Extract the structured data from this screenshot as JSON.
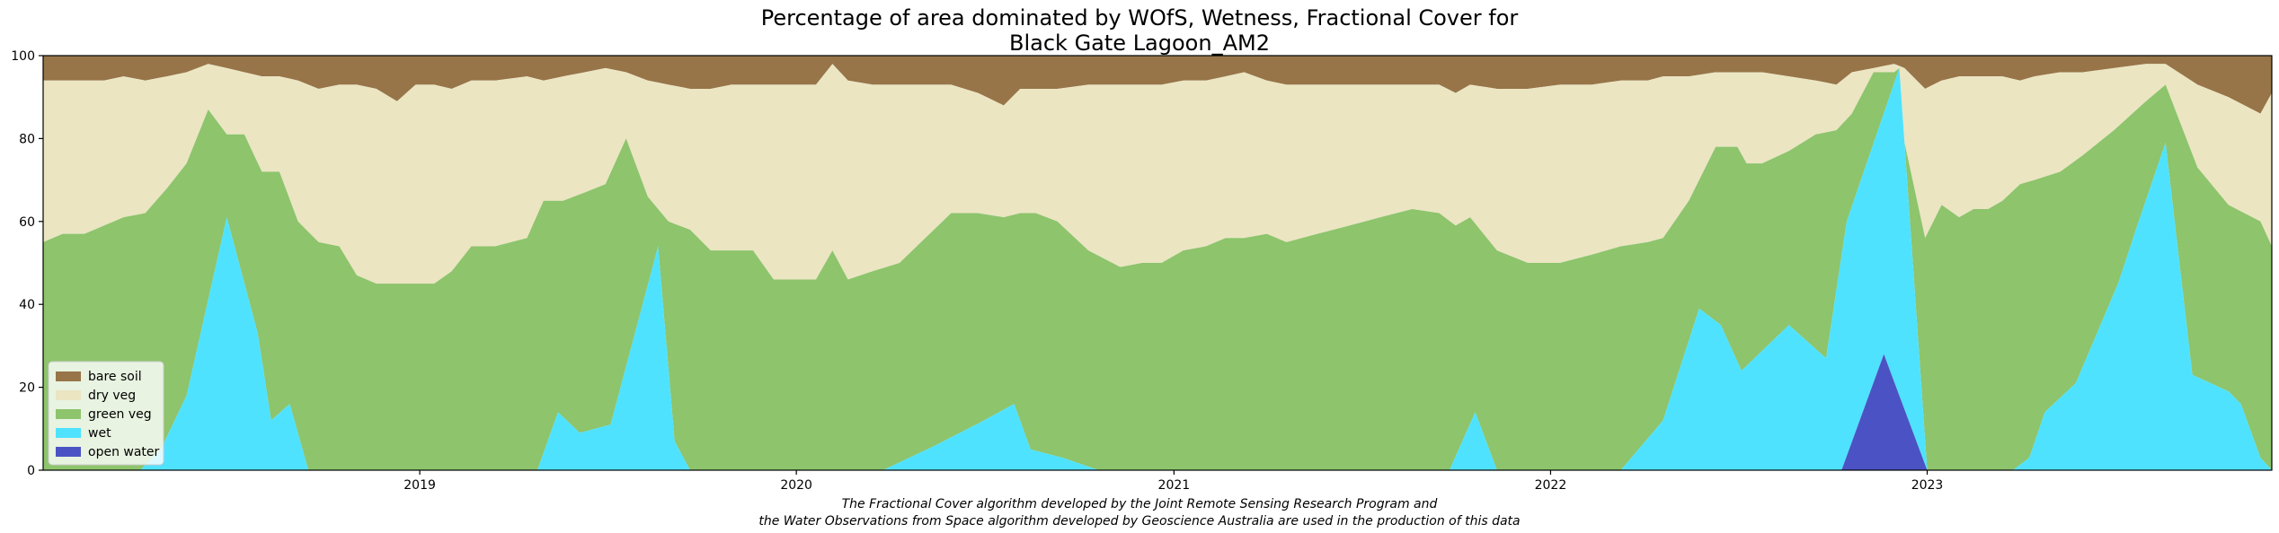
{
  "chart_data": {
    "type": "area",
    "title_lines": [
      "Percentage of area dominated by WOfS, Wetness, Fractional Cover for",
      "Black Gate Lagoon_AM2"
    ],
    "xlabel": "",
    "ylabel": "",
    "x_range": [
      "2018-01-01",
      "2023-12-01"
    ],
    "ylim": [
      0,
      100
    ],
    "x_ticks": [
      "2019",
      "2020",
      "2021",
      "2022",
      "2023"
    ],
    "y_ticks": [
      0,
      20,
      40,
      60,
      80,
      100
    ],
    "grid": false,
    "legend_position": "lower-left",
    "stacking_order": [
      "open water",
      "wet",
      "green veg",
      "dry veg",
      "bare soil"
    ],
    "series": [
      {
        "name": "bare soil",
        "color": "#977549"
      },
      {
        "name": "dry veg",
        "color": "#ebe5c2"
      },
      {
        "name": "green veg",
        "color": "#8dc46c"
      },
      {
        "name": "wet",
        "color": "#4fe2ff"
      },
      {
        "name": "open water",
        "color": "#4b53c4"
      }
    ],
    "dates": [
      "2018-01-01",
      "2018-01-20",
      "2018-02-10",
      "2018-03-01",
      "2018-03-20",
      "2018-04-10",
      "2018-05-01",
      "2018-05-20",
      "2018-06-10",
      "2018-06-28",
      "2018-07-15",
      "2018-08-01",
      "2018-08-18",
      "2018-09-05",
      "2018-09-25",
      "2018-10-15",
      "2018-11-01",
      "2018-11-20",
      "2018-12-10",
      "2018-12-28",
      "2019-01-15",
      "2019-02-01",
      "2019-02-20",
      "2019-03-15",
      "2019-04-15",
      "2019-05-01",
      "2019-05-20",
      "2019-06-10",
      "2019-06-30",
      "2019-07-20",
      "2019-08-10",
      "2019-08-30",
      "2019-09-20",
      "2019-10-10",
      "2019-10-30",
      "2019-11-20",
      "2019-12-10",
      "2020-01-01",
      "2020-01-20",
      "2020-02-05",
      "2020-02-20",
      "2020-03-15",
      "2020-04-10",
      "2020-05-05",
      "2020-05-30",
      "2020-06-25",
      "2020-07-20",
      "2020-08-05",
      "2020-08-20",
      "2020-09-10",
      "2020-10-10",
      "2020-11-10",
      "2020-12-01",
      "2020-12-20",
      "2021-01-10",
      "2021-02-01",
      "2021-02-20",
      "2021-03-10",
      "2021-04-01",
      "2021-04-20",
      "2021-05-20",
      "2021-06-20",
      "2021-07-20",
      "2021-08-20",
      "2021-09-15",
      "2021-10-01",
      "2021-10-15",
      "2021-11-10",
      "2021-12-10",
      "2022-01-10",
      "2022-02-10",
      "2022-03-10",
      "2022-04-05",
      "2022-04-20",
      "2022-05-15",
      "2022-06-10",
      "2022-07-01",
      "2022-07-10",
      "2022-07-25",
      "2022-08-20",
      "2022-09-15",
      "2022-10-05",
      "2022-10-20",
      "2022-11-10",
      "2022-11-30",
      "2022-12-10",
      "2022-12-30",
      "2023-01-15",
      "2023-02-01",
      "2023-02-15",
      "2023-03-01",
      "2023-03-15",
      "2023-04-01",
      "2023-04-15",
      "2023-05-10",
      "2023-06-01",
      "2023-07-01",
      "2023-08-01",
      "2023-08-20",
      "2023-09-20",
      "2023-10-20",
      "2023-11-20",
      "2023-12-01"
    ],
    "bare_soil": [
      6,
      6,
      6,
      6,
      5,
      6,
      5,
      4,
      2,
      3,
      4,
      5,
      5,
      6,
      8,
      7,
      7,
      8,
      11,
      7,
      7,
      8,
      6,
      6,
      5,
      6,
      5,
      4,
      3,
      4,
      6,
      7,
      8,
      8,
      7,
      7,
      7,
      7,
      7,
      2,
      6,
      7,
      7,
      7,
      7,
      9,
      12,
      8,
      8,
      8,
      7,
      7,
      7,
      7,
      6,
      6,
      5,
      4,
      6,
      7,
      7,
      7,
      7,
      7,
      7,
      9,
      7,
      8,
      8,
      7,
      7,
      6,
      6,
      5,
      5,
      4,
      4,
      4,
      4,
      5,
      6,
      7,
      4,
      3,
      2,
      3,
      8,
      6,
      5,
      5,
      5,
      5,
      6,
      5,
      4,
      4,
      3,
      2,
      2,
      7,
      10,
      14,
      9
    ],
    "dry_veg": [
      39,
      37,
      37,
      35,
      34,
      32,
      27,
      22,
      11,
      16,
      15,
      23,
      23,
      34,
      37,
      39,
      46,
      47,
      44,
      48,
      48,
      44,
      40,
      40,
      39,
      29,
      30,
      29,
      28,
      16,
      28,
      33,
      34,
      39,
      40,
      40,
      47,
      47,
      47,
      45,
      48,
      45,
      43,
      37,
      31,
      29,
      27,
      30,
      30,
      32,
      40,
      44,
      43,
      43,
      41,
      40,
      39,
      40,
      37,
      38,
      36,
      34,
      32,
      30,
      31,
      32,
      32,
      39,
      42,
      43,
      41,
      40,
      39,
      39,
      30,
      18,
      18,
      22,
      22,
      18,
      13,
      11,
      10,
      1,
      2,
      37,
      36,
      30,
      34,
      32,
      32,
      30,
      25,
      25,
      24,
      20,
      15,
      9,
      5,
      20,
      26,
      26,
      37
    ],
    "green_veg": [
      55,
      57,
      57,
      58,
      61,
      62,
      68,
      74,
      87,
      71,
      69,
      59,
      59,
      58,
      55,
      54,
      47,
      45,
      45,
      45,
      45,
      48,
      54,
      54,
      56,
      59,
      52,
      56,
      56,
      71,
      60,
      58,
      58,
      53,
      53,
      53,
      46,
      46,
      46,
      53,
      46,
      48,
      50,
      56,
      62,
      62,
      61,
      62,
      62,
      60,
      53,
      49,
      50,
      50,
      53,
      54,
      56,
      56,
      57,
      55,
      57,
      59,
      61,
      63,
      62,
      59,
      61,
      53,
      50,
      50,
      52,
      54,
      55,
      56,
      65,
      78,
      78,
      74,
      74,
      77,
      81,
      82,
      86,
      96,
      96,
      60,
      56,
      64,
      61,
      63,
      63,
      65,
      69,
      70,
      72,
      76,
      82,
      89,
      93,
      73,
      64,
      60,
      54
    ],
    "wet": [
      0,
      0,
      0,
      0,
      0,
      0,
      0,
      0,
      0,
      0,
      0,
      0,
      0,
      0,
      0,
      0,
      0,
      0,
      0,
      0,
      0,
      0,
      0,
      0,
      0,
      0,
      0,
      0,
      0,
      0,
      0,
      0,
      0,
      0,
      0,
      0,
      0,
      0,
      0,
      0,
      0,
      0,
      0,
      0,
      0,
      0,
      0,
      0,
      0,
      0,
      0,
      0,
      0,
      0,
      0,
      0,
      0,
      0,
      0,
      0,
      0,
      0,
      0,
      0,
      0,
      0,
      0,
      0,
      0,
      0,
      0,
      0,
      0,
      0,
      0,
      0,
      0,
      0,
      0,
      0,
      0,
      0,
      0,
      0,
      0,
      0,
      0,
      0,
      0,
      0,
      0,
      0,
      0,
      0,
      0,
      0,
      0,
      0,
      0,
      0,
      0,
      0,
      0
    ],
    "wet_values": [
      0,
      0,
      0,
      0,
      0,
      0,
      0,
      0,
      0,
      0,
      0,
      0,
      0,
      0,
      0,
      0,
      0,
      0,
      0,
      0,
      0,
      0,
      0,
      0,
      0,
      0,
      0,
      0,
      0,
      0,
      0,
      0,
      0,
      0,
      0,
      0,
      0,
      0,
      0,
      0,
      0,
      0,
      0,
      0,
      0,
      0,
      0,
      0,
      0,
      0,
      0,
      0,
      0,
      0,
      0,
      0,
      0,
      0,
      0,
      0,
      0,
      0,
      0,
      0,
      0,
      0,
      0,
      0,
      0,
      0,
      0,
      0,
      0,
      0,
      0,
      0,
      0,
      0,
      0,
      0,
      0,
      0,
      0,
      0,
      0,
      0,
      0,
      0,
      0,
      0,
      0,
      0,
      0,
      0,
      0,
      0,
      0,
      0,
      0,
      0,
      0,
      0,
      0
    ],
    "wet_profile": [
      [
        "2018-01-01",
        0
      ],
      [
        "2018-04-05",
        0
      ],
      [
        "2018-04-25",
        5
      ],
      [
        "2018-05-20",
        18
      ],
      [
        "2018-06-28",
        61
      ],
      [
        "2018-07-28",
        33
      ],
      [
        "2018-08-10",
        12
      ],
      [
        "2018-08-28",
        16
      ],
      [
        "2018-09-15",
        0
      ],
      [
        "2019-04-25",
        0
      ],
      [
        "2019-05-15",
        14
      ],
      [
        "2019-06-05",
        9
      ],
      [
        "2019-07-05",
        11
      ],
      [
        "2019-08-20",
        54
      ],
      [
        "2019-09-05",
        7
      ],
      [
        "2019-09-20",
        0
      ],
      [
        "2020-03-25",
        0
      ],
      [
        "2020-05-15",
        6
      ],
      [
        "2020-07-01",
        12
      ],
      [
        "2020-07-30",
        16
      ],
      [
        "2020-08-15",
        5
      ],
      [
        "2020-09-15",
        3
      ],
      [
        "2020-10-20",
        0
      ],
      [
        "2021-08-25",
        0
      ],
      [
        "2021-09-25",
        0
      ],
      [
        "2021-10-20",
        14
      ],
      [
        "2021-11-10",
        0
      ],
      [
        "2022-03-10",
        0
      ],
      [
        "2022-04-20",
        12
      ],
      [
        "2022-05-25",
        39
      ],
      [
        "2022-06-15",
        35
      ],
      [
        "2022-07-05",
        24
      ],
      [
        "2022-08-20",
        35
      ],
      [
        "2022-09-25",
        27
      ],
      [
        "2022-10-15",
        60
      ],
      [
        "2022-12-05",
        97
      ],
      [
        "2023-01-01",
        0
      ],
      [
        "2023-03-25",
        0
      ],
      [
        "2023-04-10",
        3
      ],
      [
        "2023-04-25",
        14
      ],
      [
        "2023-05-25",
        21
      ],
      [
        "2023-07-05",
        45
      ],
      [
        "2023-07-25",
        60
      ],
      [
        "2023-08-20",
        79
      ],
      [
        "2023-09-15",
        23
      ],
      [
        "2023-10-20",
        19
      ],
      [
        "2023-11-01",
        16
      ],
      [
        "2023-11-20",
        3
      ],
      [
        "2023-12-01",
        0
      ]
    ],
    "open_water_profile": [
      [
        "2018-01-01",
        0
      ],
      [
        "2022-10-10",
        0
      ],
      [
        "2022-11-20",
        28
      ],
      [
        "2023-01-01",
        0
      ],
      [
        "2023-12-01",
        0
      ]
    ],
    "legend_entries": [
      "bare soil",
      "dry veg",
      "green veg",
      "wet",
      "open water"
    ]
  },
  "footnote_lines": [
    "The Fractional Cover algorithm developed by the Joint Remote Sensing Research Program and",
    "the Water Observations from Space algorithm developed by Geoscience Australia are used in the production of this data"
  ]
}
